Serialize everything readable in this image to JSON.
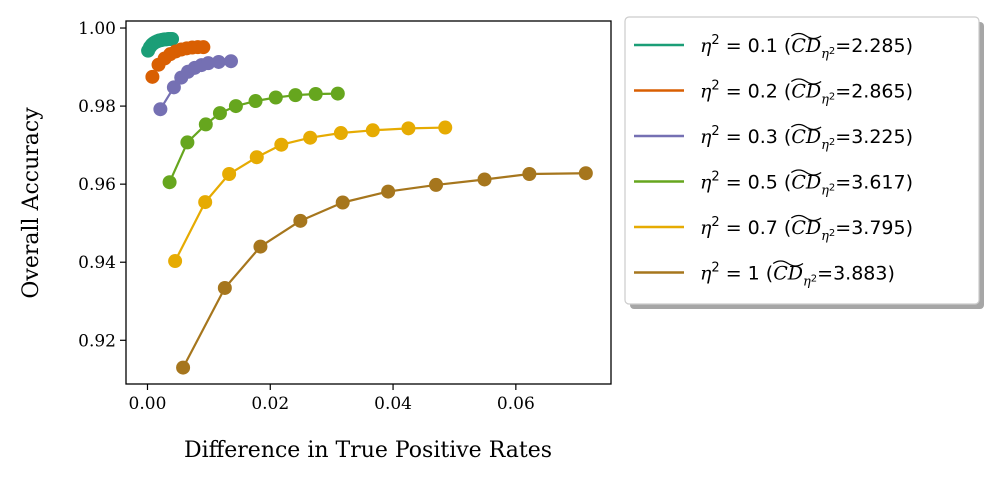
{
  "chart_data": {
    "type": "line",
    "title": "",
    "xlabel": "Difference in True Positive Rates",
    "ylabel": "Overall Accuracy",
    "xlim": [
      -0.0035,
      0.0755
    ],
    "ylim": [
      0.9088,
      1.0018
    ],
    "xticks": [
      0.0,
      0.02,
      0.04,
      0.06
    ],
    "xtick_labels": [
      "0.00",
      "0.02",
      "0.04",
      "0.06"
    ],
    "yticks": [
      0.92,
      0.94,
      0.96,
      0.98,
      1.0
    ],
    "ytick_labels": [
      "0.92",
      "0.94",
      "0.96",
      "0.98",
      "1.00"
    ],
    "legend_position": "outside-right",
    "series": [
      {
        "name": "η² = 0.1 (CD̃η²=2.285)",
        "eta": "0.1",
        "cd": "2.285",
        "color": "#1b9e77",
        "x": [
          0.0001,
          0.0004,
          0.0007,
          0.001,
          0.0013,
          0.0016,
          0.0019,
          0.0022,
          0.0025,
          0.0028,
          0.0031,
          0.0034,
          0.0037,
          0.004
        ],
        "y": [
          0.9942,
          0.9951,
          0.9957,
          0.9961,
          0.9964,
          0.9966,
          0.9968,
          0.9969,
          0.997,
          0.9971,
          0.9971,
          0.9972,
          0.9972,
          0.9972
        ]
      },
      {
        "name": "η² = 0.2 (CD̃η²=2.865)",
        "eta": "0.2",
        "cd": "2.865",
        "color": "#d95f02",
        "x": [
          0.0008,
          0.0018,
          0.0028,
          0.0037,
          0.0046,
          0.0055,
          0.0064,
          0.0073,
          0.0082,
          0.0091
        ],
        "y": [
          0.9875,
          0.9906,
          0.9922,
          0.9933,
          0.994,
          0.9945,
          0.9948,
          0.995,
          0.9951,
          0.9951
        ]
      },
      {
        "name": "η² = 0.3 (CD̃η²=3.225)",
        "eta": "0.3",
        "cd": "3.225",
        "color": "#7570b3",
        "x": [
          0.0021,
          0.0043,
          0.0055,
          0.0066,
          0.0077,
          0.0088,
          0.0099,
          0.0116,
          0.0136
        ],
        "y": [
          0.9792,
          0.9848,
          0.9873,
          0.9888,
          0.9898,
          0.9905,
          0.991,
          0.9913,
          0.9915
        ]
      },
      {
        "name": "η² = 0.5 (CD̃η²=3.617)",
        "eta": "0.5",
        "cd": "3.617",
        "color": "#66a61e",
        "x": [
          0.0036,
          0.0065,
          0.0095,
          0.0118,
          0.0144,
          0.0176,
          0.0209,
          0.0241,
          0.0274,
          0.031
        ],
        "y": [
          0.9605,
          0.9707,
          0.9753,
          0.9782,
          0.98,
          0.9813,
          0.9822,
          0.9828,
          0.9831,
          0.9832
        ]
      },
      {
        "name": "η² = 0.7 (CD̃η²=3.795)",
        "eta": "0.7",
        "cd": "3.795",
        "color": "#e6ab02",
        "x": [
          0.0045,
          0.0094,
          0.0133,
          0.0178,
          0.0218,
          0.0265,
          0.0315,
          0.0367,
          0.0425,
          0.0485
        ],
        "y": [
          0.9403,
          0.9554,
          0.9626,
          0.9669,
          0.9701,
          0.9719,
          0.9731,
          0.9738,
          0.9743,
          0.9745
        ]
      },
      {
        "name": "η² = 1 (CD̃η²=3.883)",
        "eta": "1",
        "cd": "3.883",
        "color": "#a6761d",
        "x": [
          0.0058,
          0.0126,
          0.0184,
          0.0249,
          0.0318,
          0.0392,
          0.047,
          0.0549,
          0.0622,
          0.0714
        ],
        "y": [
          0.913,
          0.9334,
          0.944,
          0.9506,
          0.9553,
          0.9581,
          0.9598,
          0.9612,
          0.9626,
          0.9628
        ]
      }
    ]
  }
}
